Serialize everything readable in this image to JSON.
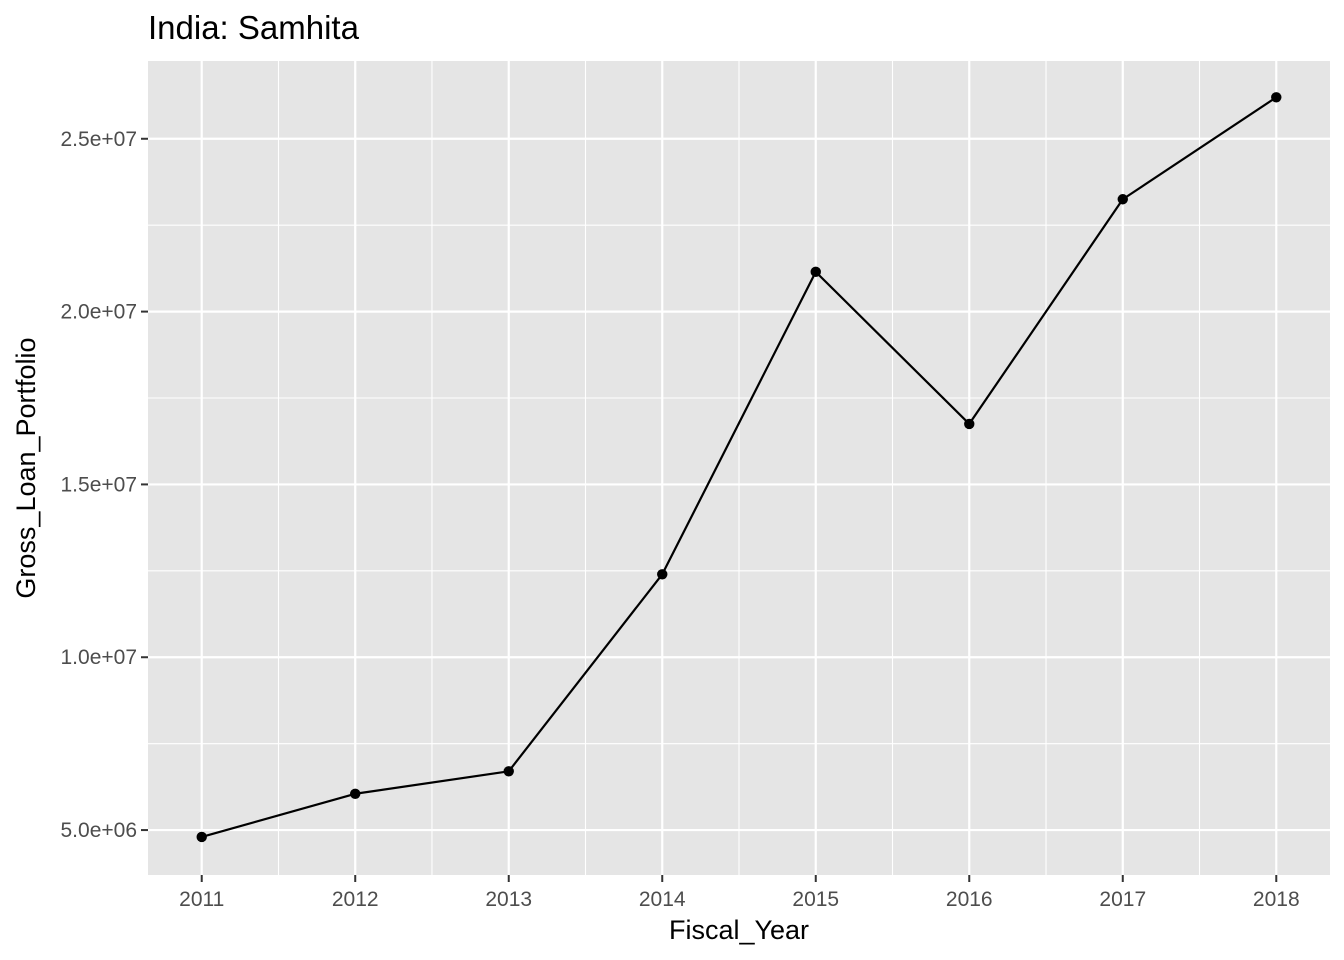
{
  "chart_data": {
    "type": "line",
    "title": "India:  Samhita",
    "xlabel": "Fiscal_Year",
    "ylabel": "Gross_Loan_Portfolio",
    "x": [
      2011,
      2012,
      2013,
      2014,
      2015,
      2016,
      2017,
      2018
    ],
    "series": [
      {
        "values": [
          4800000,
          6050000,
          6700000,
          12400000,
          21150000,
          16750000,
          23250000,
          26200000
        ]
      }
    ],
    "x_ticks": [
      "2011",
      "2012",
      "2013",
      "2014",
      "2015",
      "2016",
      "2017",
      "2018"
    ],
    "y_ticks": [
      {
        "value": 5000000,
        "label": "5.0e+06"
      },
      {
        "value": 10000000,
        "label": "1.0e+07"
      },
      {
        "value": 15000000,
        "label": "1.5e+07"
      },
      {
        "value": 20000000,
        "label": "2.0e+07"
      },
      {
        "value": 25000000,
        "label": "2.5e+07"
      }
    ],
    "xlim": [
      2010.65,
      2018.35
    ],
    "ylim": [
      3700000,
      27250000
    ],
    "grid": true,
    "legend": "none",
    "colors": {
      "panel_background": "#e5e5e5",
      "grid": "#ffffff",
      "line": "#000000",
      "point": "#000000",
      "tick_label": "#4d4d4d",
      "tick_mark": "#333333"
    }
  }
}
